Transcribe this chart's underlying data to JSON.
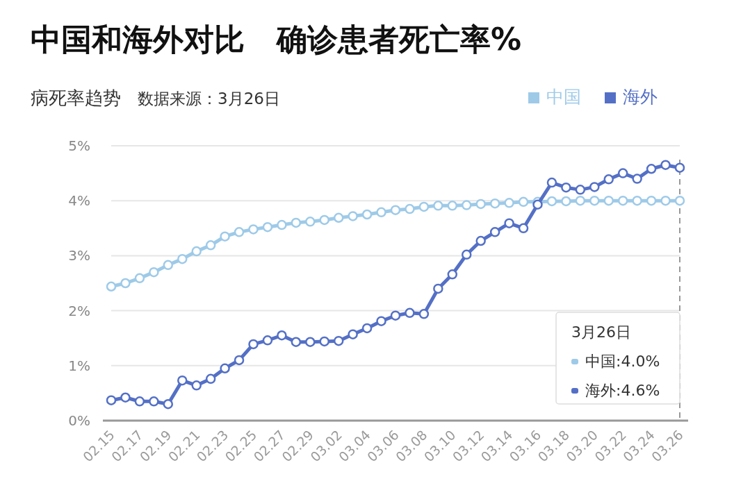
{
  "chart_data": {
    "type": "line",
    "title": "中国和海外对比   确诊患者死亡率%",
    "subtitle": "病死率趋势",
    "annotations": [
      "数据来源：3月26日",
      "3月26日",
      "中国:4.0%",
      "海外:4.6%"
    ],
    "categories": [
      "02.15",
      null,
      "02.17",
      null,
      "02.19",
      null,
      "02.21",
      null,
      "02.23",
      null,
      "02.25",
      null,
      "02.27",
      null,
      "02.29",
      null,
      "03.02",
      null,
      "03.04",
      null,
      "03.06",
      null,
      "03.08",
      null,
      "03.10",
      null,
      "03.12",
      null,
      "03.14",
      null,
      "03.16",
      null,
      "03.18",
      null,
      "03.20",
      null,
      "03.22",
      null,
      "03.24",
      null,
      "03.26"
    ],
    "series": [
      {
        "name": "中国",
        "color": "#9ecae8",
        "values": [
          2.44,
          2.5,
          2.59,
          2.7,
          2.83,
          2.94,
          3.08,
          3.19,
          3.35,
          3.43,
          3.48,
          3.52,
          3.56,
          3.6,
          3.62,
          3.65,
          3.69,
          3.72,
          3.75,
          3.79,
          3.83,
          3.85,
          3.89,
          3.91,
          3.91,
          3.92,
          3.94,
          3.95,
          3.96,
          3.98,
          3.98,
          3.99,
          3.99,
          4.0,
          4.0,
          4.0,
          4.0,
          4.0,
          4.0,
          4.0,
          4.0
        ]
      },
      {
        "name": "海外",
        "color": "#5470c6",
        "values": [
          0.37,
          0.42,
          0.35,
          0.35,
          0.3,
          0.73,
          0.64,
          0.76,
          0.95,
          1.1,
          1.39,
          1.46,
          1.55,
          1.43,
          1.43,
          1.44,
          1.45,
          1.57,
          1.68,
          1.81,
          1.91,
          1.96,
          1.94,
          2.4,
          2.66,
          3.02,
          3.27,
          3.43,
          3.59,
          3.5,
          3.93,
          4.33,
          4.24,
          4.2,
          4.25,
          4.39,
          4.5,
          4.4,
          4.58,
          4.65,
          4.6
        ]
      }
    ],
    "ylim": [
      0,
      5
    ],
    "yticks": [
      {
        "value": 0,
        "label": "0%"
      },
      {
        "value": 1,
        "label": "1%"
      },
      {
        "value": 2,
        "label": "2%"
      },
      {
        "value": 3,
        "label": "3%"
      },
      {
        "value": 4,
        "label": "4%"
      },
      {
        "value": 5,
        "label": "5%"
      }
    ],
    "ref_lines": [
      {
        "axis": "x",
        "value": "03.26",
        "color": "#999999",
        "line_style": "dashed"
      }
    ],
    "grid": "y",
    "legend": "top right",
    "marker": "circle",
    "line_style": "solid"
  }
}
